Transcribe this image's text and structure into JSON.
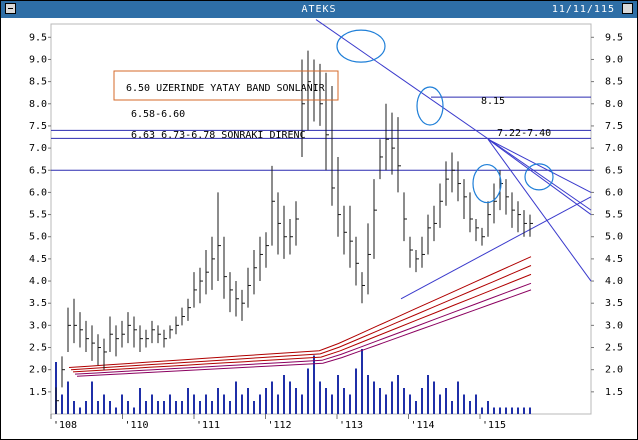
{
  "window": {
    "title": "ATEKS",
    "date": "11/11/115"
  },
  "chart_data": {
    "type": "candlestick",
    "title": "",
    "y_ticks": [
      "9.5",
      "9.0",
      "8.5",
      "8.0",
      "7.5",
      "7.0",
      "6.5",
      "6.0",
      "5.5",
      "5.0",
      "4.5",
      "4.0",
      "3.5",
      "3.0",
      "2.5",
      "2.0",
      "1.5"
    ],
    "x_ticks": [
      "'108",
      "'110",
      "'111",
      "'112",
      "'113",
      "'114",
      "'115"
    ],
    "ylim": [
      1.0,
      9.8
    ],
    "grid": false,
    "horizontal_levels": [
      {
        "label": "8.15",
        "value": 8.15
      },
      {
        "label": "7.22-7.40",
        "value": 7.22
      },
      {
        "label": "",
        "value": 7.4
      },
      {
        "label": "",
        "value": 6.5
      }
    ],
    "annotations": [
      {
        "text": "6.50 UZERINDE YATAY BAND SONLANIR",
        "boxed": true
      },
      {
        "text": "6.58-6.60",
        "boxed": false
      },
      {
        "text": "6.63  6.73-6.78 SONRAKI DIRENC",
        "boxed": false
      }
    ],
    "price_bars": {
      "x_index": [
        0,
        6,
        12,
        18,
        24,
        30,
        36,
        42,
        48,
        54,
        60,
        66,
        72,
        78,
        84,
        90,
        96,
        102,
        108,
        114,
        120,
        126,
        132,
        138,
        144,
        150,
        156,
        162,
        168,
        174,
        180,
        186,
        192,
        198,
        204,
        210,
        216,
        222,
        228,
        234,
        240,
        246,
        252,
        258,
        264,
        270,
        276,
        282,
        288,
        294,
        300,
        306,
        312,
        318,
        324,
        330,
        336,
        342,
        348,
        354,
        360,
        366,
        372,
        378,
        384,
        390,
        396,
        402,
        408,
        414,
        420,
        426,
        432,
        438,
        444,
        450,
        456,
        462,
        468,
        474
      ],
      "high": [
        1.6,
        2.3,
        3.4,
        3.6,
        3.3,
        3.1,
        3.0,
        2.8,
        2.7,
        3.2,
        3.0,
        3.1,
        3.3,
        3.2,
        3.0,
        2.9,
        3.1,
        3.0,
        2.9,
        3.0,
        3.2,
        3.4,
        3.6,
        4.2,
        4.3,
        4.7,
        5.0,
        6.0,
        5.0,
        4.2,
        4.0,
        3.8,
        4.3,
        4.7,
        5.0,
        5.1,
        6.6,
        6.0,
        5.7,
        5.4,
        5.8,
        9.0,
        9.2,
        9.0,
        8.9,
        8.7,
        8.4,
        6.8,
        5.7,
        5.7,
        5.0,
        4.2,
        5.3,
        6.3,
        7.2,
        8.0,
        7.8,
        7.7,
        6.0,
        5.0,
        4.7,
        5.0,
        5.5,
        5.7,
        6.2,
        6.7,
        6.9,
        6.7,
        6.3,
        6.0,
        5.4,
        5.2,
        5.8,
        6.2,
        6.5,
        6.3,
        6.0,
        5.8,
        5.6,
        5.5
      ],
      "low": [
        1.0,
        1.6,
        2.4,
        2.6,
        2.5,
        2.4,
        2.2,
        2.1,
        2.0,
        2.4,
        2.3,
        2.5,
        2.6,
        2.5,
        2.4,
        2.5,
        2.6,
        2.6,
        2.5,
        2.7,
        2.8,
        3.0,
        3.1,
        3.4,
        3.5,
        3.7,
        3.8,
        4.0,
        3.6,
        3.3,
        3.2,
        3.1,
        3.4,
        3.7,
        4.0,
        4.3,
        4.8,
        4.6,
        4.5,
        4.6,
        4.8,
        6.8,
        7.4,
        7.6,
        7.5,
        6.5,
        5.7,
        5.0,
        4.6,
        4.3,
        3.9,
        3.5,
        3.7,
        4.5,
        6.3,
        6.5,
        6.4,
        6.0,
        4.9,
        4.3,
        4.2,
        4.3,
        4.6,
        4.9,
        5.2,
        5.7,
        6.0,
        5.8,
        5.4,
        5.1,
        4.9,
        4.8,
        5.0,
        5.3,
        5.6,
        5.5,
        5.2,
        5.1,
        5.0,
        5.0
      ],
      "close": [
        1.3,
        2.0,
        3.0,
        3.0,
        2.9,
        2.7,
        2.6,
        2.5,
        2.4,
        2.8,
        2.7,
        2.8,
        3.0,
        2.9,
        2.7,
        2.7,
        2.9,
        2.8,
        2.7,
        2.9,
        3.0,
        3.2,
        3.4,
        3.8,
        4.0,
        4.2,
        4.5,
        4.8,
        4.1,
        3.8,
        3.6,
        3.5,
        3.9,
        4.3,
        4.6,
        4.8,
        5.8,
        5.3,
        5.0,
        5.0,
        5.4,
        8.0,
        8.5,
        8.3,
        8.0,
        7.3,
        6.1,
        5.5,
        5.1,
        4.9,
        4.4,
        3.9,
        4.6,
        5.6,
        6.8,
        7.2,
        7.0,
        6.6,
        5.4,
        4.7,
        4.5,
        4.6,
        5.2,
        5.3,
        5.8,
        6.3,
        6.5,
        6.2,
        5.9,
        5.4,
        5.2,
        5.0,
        5.5,
        5.8,
        6.2,
        5.9,
        5.6,
        5.5,
        5.3,
        5.3
      ]
    },
    "moving_averages": [
      {
        "start": 2.05,
        "end": 4.55,
        "color": "#b00000"
      },
      {
        "start": 2.05,
        "end": 4.35,
        "color": "#b00000"
      },
      {
        "start": 2.05,
        "end": 4.15,
        "color": "#b00000"
      },
      {
        "start": 2.05,
        "end": 3.95,
        "color": "#8b0060"
      },
      {
        "start": 2.05,
        "end": 3.8,
        "color": "#8b0060"
      }
    ],
    "volume": [
      0.8,
      0.3,
      0.5,
      0.2,
      0.1,
      0.2,
      0.5,
      0.2,
      0.3,
      0.2,
      0.1,
      0.3,
      0.2,
      0.1,
      0.4,
      0.2,
      0.3,
      0.2,
      0.2,
      0.3,
      0.2,
      0.2,
      0.4,
      0.3,
      0.2,
      0.3,
      0.2,
      0.4,
      0.3,
      0.2,
      0.5,
      0.3,
      0.4,
      0.2,
      0.3,
      0.4,
      0.5,
      0.3,
      0.6,
      0.5,
      0.4,
      0.3,
      0.7,
      0.9,
      0.5,
      0.4,
      0.3,
      0.6,
      0.4,
      0.3,
      0.7,
      1.0,
      0.6,
      0.5,
      0.4,
      0.3,
      0.5,
      0.6,
      0.4,
      0.3,
      0.2,
      0.4,
      0.6,
      0.5,
      0.3,
      0.4,
      0.2,
      0.5,
      0.3,
      0.2,
      0.3,
      0.1,
      0.2,
      0.1,
      0.1,
      0.1,
      0.1,
      0.1,
      0.1,
      0.1
    ],
    "colors": {
      "price_bars": "#1a1a1a",
      "trend_lines": "#3a3acc",
      "horizontal_lines": "#2b2bb0",
      "volume": "#1f2fa8",
      "highlight_circles": "#1f7fd8",
      "annotation_box": "#d46a2a",
      "titlebar": "#2e6ea6"
    }
  }
}
